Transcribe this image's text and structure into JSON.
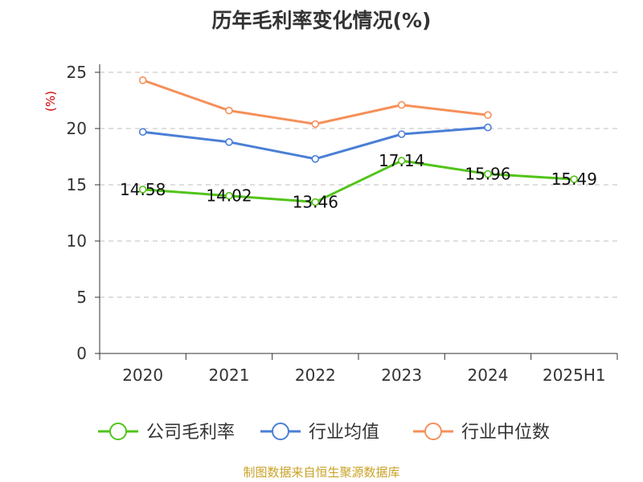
{
  "chart_data": {
    "type": "line",
    "title": "历年毛利率变化情况(%)",
    "ylabel": "(%)",
    "categories": [
      "2020",
      "2021",
      "2022",
      "2023",
      "2024",
      "2025H1"
    ],
    "ylim": [
      0,
      25
    ],
    "yticks": [
      0,
      5,
      10,
      15,
      20,
      25
    ],
    "grid": true,
    "legend_position": "bottom",
    "series": [
      {
        "name": "公司毛利率",
        "color": "#52c41a",
        "show_labels": true,
        "values": [
          14.58,
          14.02,
          13.46,
          17.14,
          15.96,
          15.49
        ]
      },
      {
        "name": "行业均值",
        "color": "#4a7fd6",
        "show_labels": false,
        "values": [
          19.7,
          18.8,
          17.3,
          19.5,
          20.1,
          null
        ]
      },
      {
        "name": "行业中位数",
        "color": "#f5905a",
        "show_labels": false,
        "values": [
          24.3,
          21.6,
          20.4,
          22.1,
          21.2,
          null
        ]
      }
    ]
  },
  "source": "制图数据来自恒生聚源数据库"
}
